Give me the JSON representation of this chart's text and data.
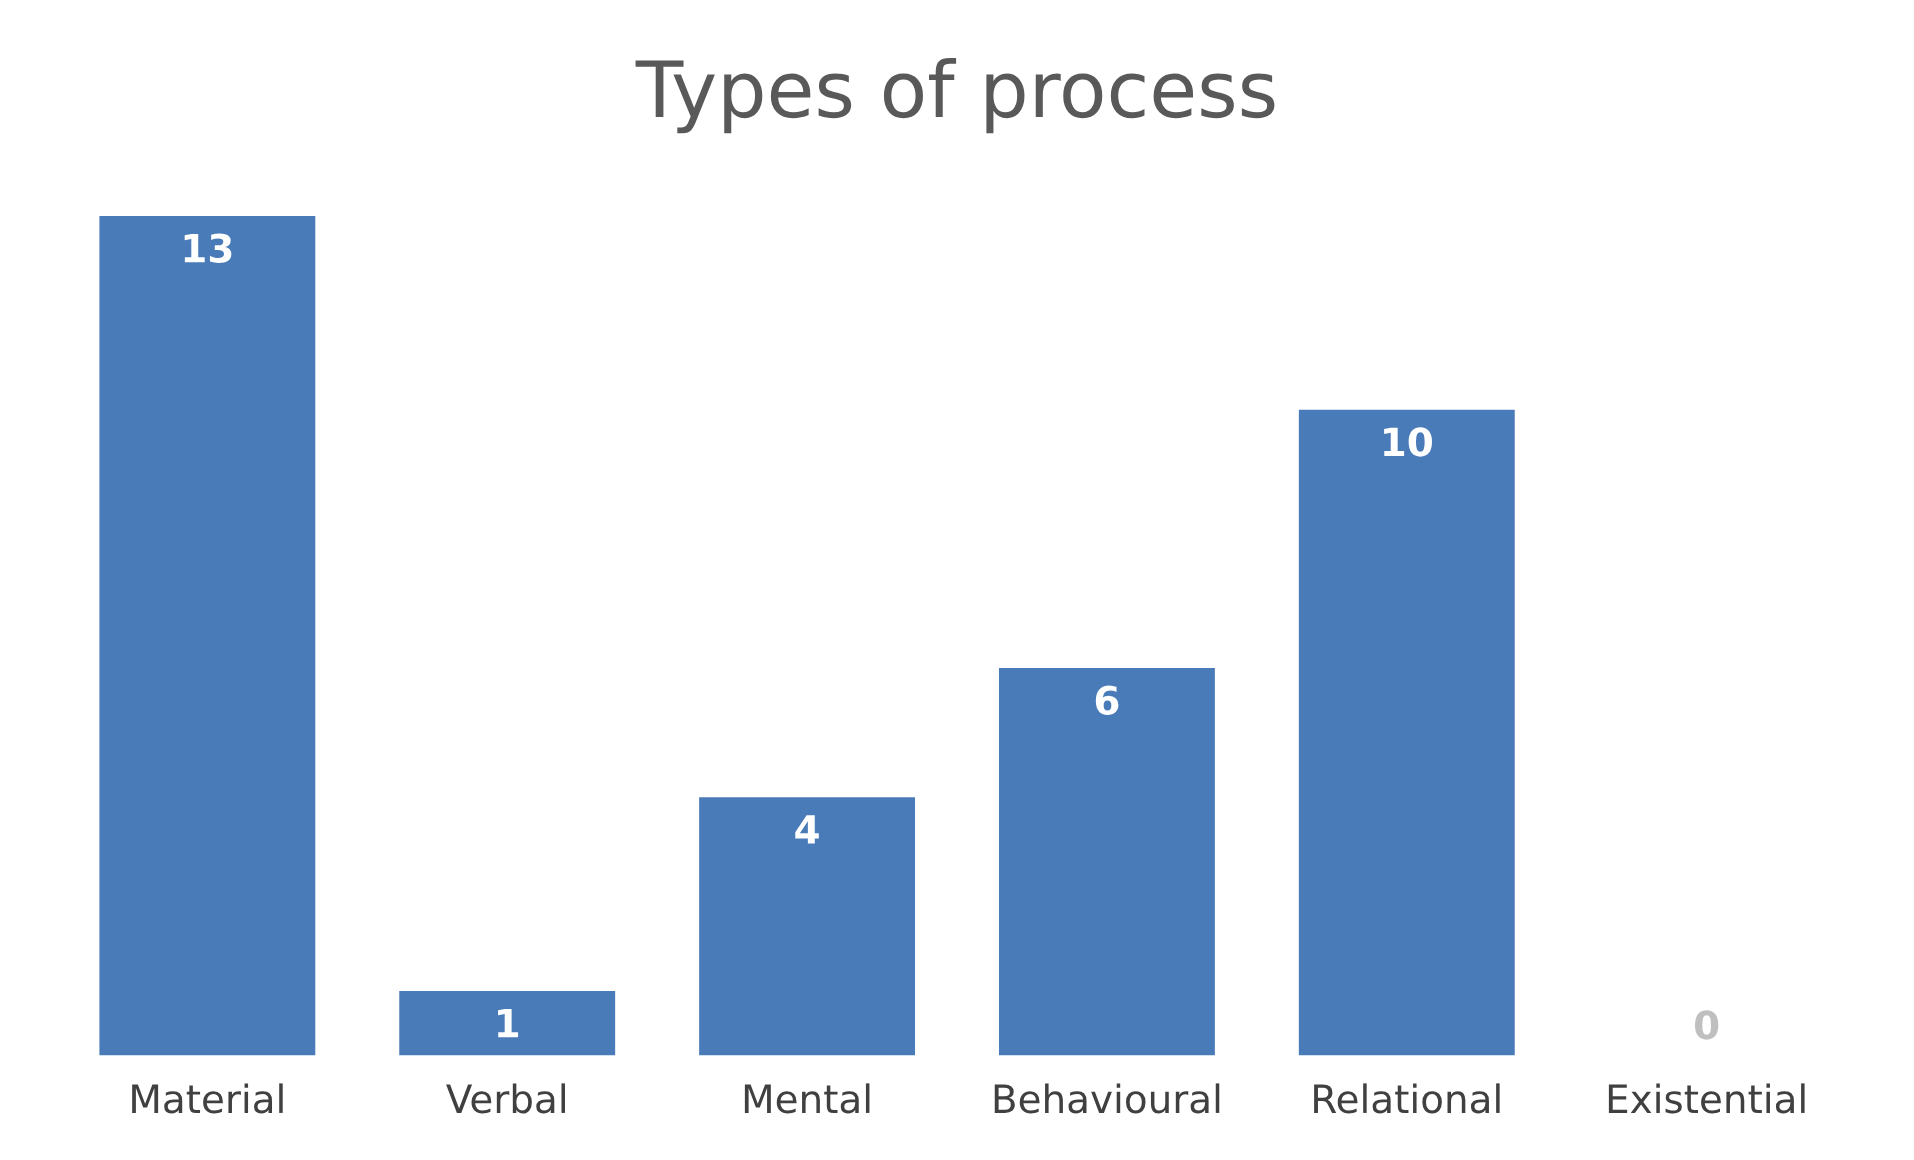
{
  "chart_data": {
    "type": "bar",
    "title": "Types of process",
    "categories": [
      "Material",
      "Verbal",
      "Mental",
      "Behavioural",
      "Relational",
      "Existential"
    ],
    "values": [
      13,
      1,
      4,
      6,
      10,
      0
    ],
    "color": "#4a7bb9",
    "data_labels": true
  }
}
